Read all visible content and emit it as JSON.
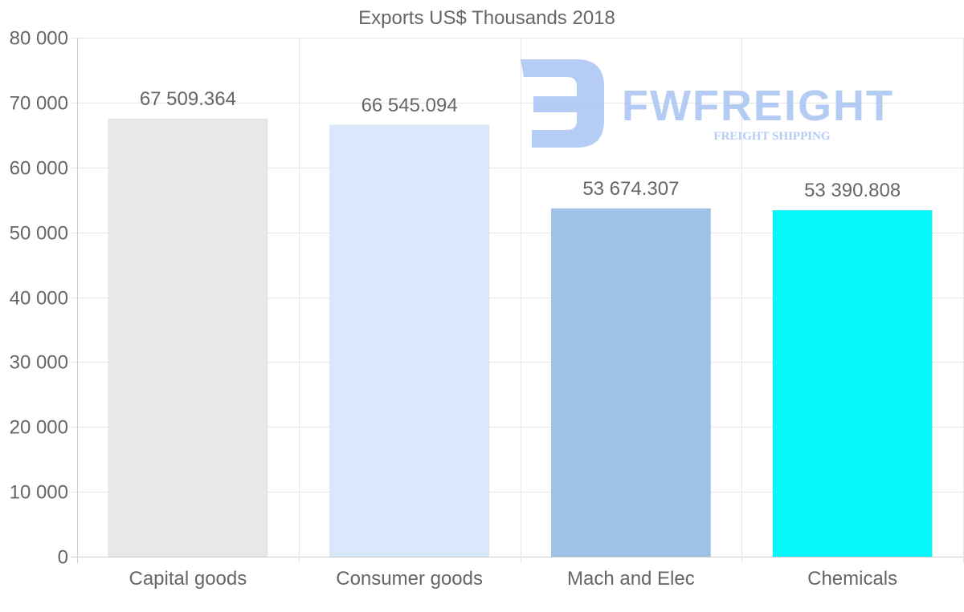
{
  "chart_data": {
    "type": "bar",
    "title": "Exports US$ Thousands 2018",
    "categories": [
      "Capital goods",
      "Consumer goods",
      "Mach and Elec",
      "Chemicals"
    ],
    "values": [
      67509.364,
      66545.094,
      53674.307,
      53390.808
    ],
    "value_labels": [
      "67 509.364",
      "66 545.094",
      "53 674.307",
      "53 390.808"
    ],
    "bar_colors": [
      "#e8e8e8",
      "#d9e8fa",
      "#9cc3e6",
      "#05f8fa"
    ],
    "ylim": [
      0,
      80000
    ],
    "yticks": [
      0,
      10000,
      20000,
      30000,
      40000,
      50000,
      60000,
      70000,
      80000
    ],
    "ytick_labels": [
      "0",
      "10 000",
      "20 000",
      "30 000",
      "40 000",
      "50 000",
      "60 000",
      "70 000",
      "80 000"
    ],
    "xlabel": "",
    "ylabel": "",
    "grid": true,
    "legend": "none"
  },
  "watermark": {
    "brand": "FWFREIGHT",
    "tagline": "FREIGHT SHIPPING",
    "color": "#a8c4f2"
  }
}
